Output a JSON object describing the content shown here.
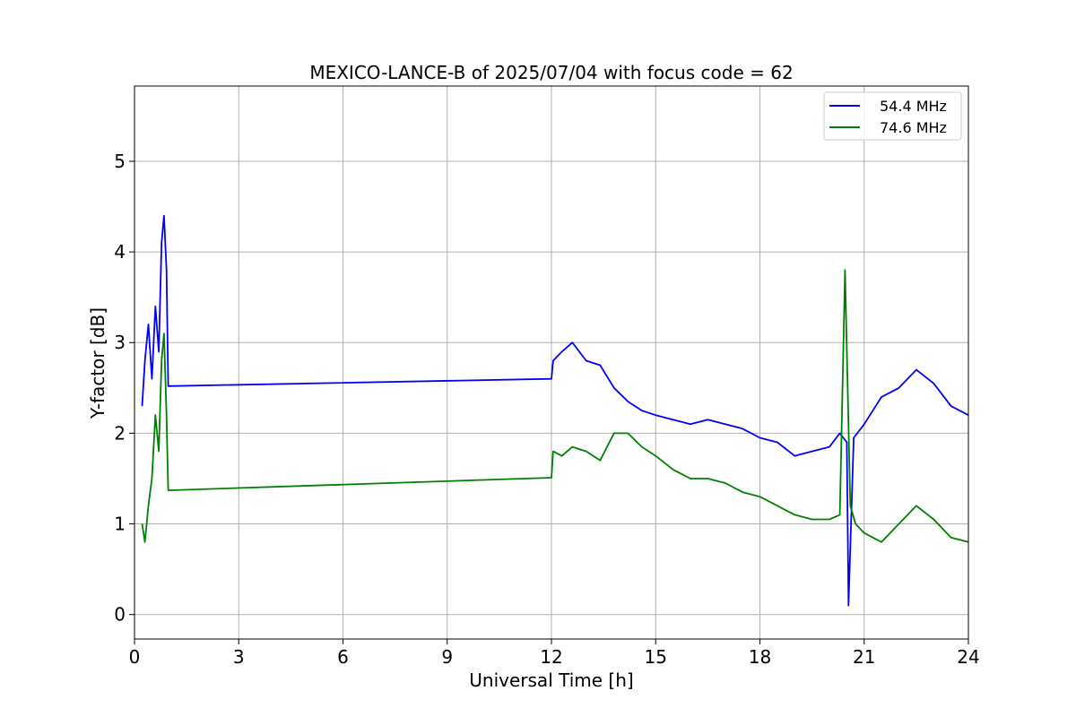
{
  "chart_data": {
    "type": "line",
    "title": "MEXICO-LANCE-B of 2025/07/04 with focus code = 62",
    "xlabel": "Universal Time [h]",
    "ylabel": "Y-factor [dB]",
    "xlim": [
      0,
      24
    ],
    "ylim": [
      -0.27,
      5.83
    ],
    "xticks": [
      0,
      3,
      6,
      9,
      12,
      15,
      18,
      21,
      24
    ],
    "yticks": [
      0,
      1,
      2,
      3,
      4,
      5
    ],
    "grid": true,
    "legend_position": "upper-right",
    "series": [
      {
        "name": "54.4 MHz",
        "color": "#0000ff",
        "x": [
          0.22,
          0.3,
          0.4,
          0.5,
          0.6,
          0.7,
          0.78,
          0.85,
          0.92,
          0.97,
          12.0,
          12.05,
          12.3,
          12.6,
          13.0,
          13.4,
          13.8,
          14.2,
          14.6,
          15.0,
          15.5,
          16.0,
          16.5,
          17.0,
          17.5,
          18.0,
          18.5,
          19.0,
          19.5,
          20.0,
          20.3,
          20.5,
          20.55,
          20.7,
          21.0,
          21.5,
          22.0,
          22.5,
          23.0,
          23.5,
          24.0
        ],
        "y": [
          2.3,
          2.8,
          3.2,
          2.6,
          3.4,
          2.9,
          4.1,
          4.4,
          3.8,
          2.52,
          2.6,
          2.8,
          2.9,
          3.0,
          2.8,
          2.75,
          2.5,
          2.35,
          2.25,
          2.2,
          2.15,
          2.1,
          2.15,
          2.1,
          2.05,
          1.95,
          1.9,
          1.75,
          1.8,
          1.85,
          2.0,
          1.9,
          0.1,
          1.95,
          2.1,
          2.4,
          2.5,
          2.7,
          2.55,
          2.3,
          2.2
        ]
      },
      {
        "name": "74.6 MHz",
        "color": "#008000",
        "x": [
          0.22,
          0.3,
          0.4,
          0.5,
          0.6,
          0.7,
          0.78,
          0.85,
          0.92,
          0.97,
          12.0,
          12.05,
          12.3,
          12.6,
          13.0,
          13.4,
          13.8,
          14.2,
          14.6,
          15.0,
          15.5,
          16.0,
          16.5,
          17.0,
          17.5,
          18.0,
          18.5,
          19.0,
          19.5,
          20.0,
          20.3,
          20.45,
          20.6,
          20.75,
          21.0,
          21.5,
          22.0,
          22.5,
          23.0,
          23.5,
          24.0
        ],
        "y": [
          1.0,
          0.8,
          1.2,
          1.5,
          2.2,
          1.8,
          2.8,
          3.1,
          2.2,
          1.37,
          1.51,
          1.8,
          1.75,
          1.85,
          1.8,
          1.7,
          2.0,
          2.0,
          1.85,
          1.75,
          1.6,
          1.5,
          1.5,
          1.45,
          1.35,
          1.3,
          1.2,
          1.1,
          1.05,
          1.05,
          1.1,
          3.8,
          1.2,
          1.0,
          0.9,
          0.8,
          1.0,
          1.2,
          1.05,
          0.85,
          0.8
        ]
      }
    ]
  }
}
